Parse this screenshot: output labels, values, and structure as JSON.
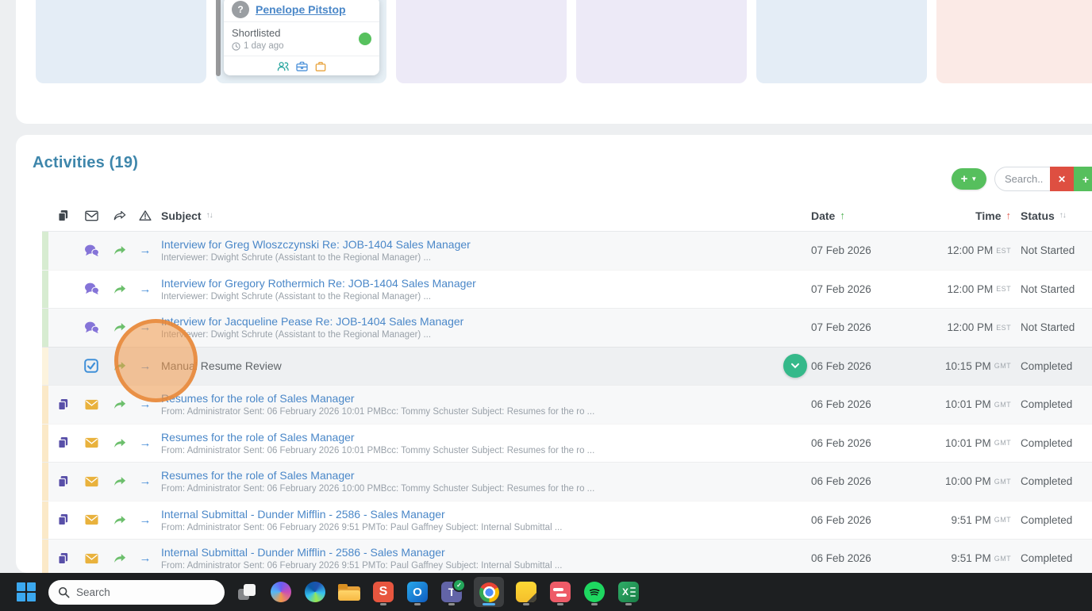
{
  "pipeline": {
    "lanes": [
      {
        "name": "lane-1",
        "color": "#e4edf6"
      },
      {
        "name": "lane-2",
        "color": "#e6eff5"
      },
      {
        "name": "lane-3",
        "color": "#edeaf7"
      },
      {
        "name": "lane-4",
        "color": "#edeaf7"
      },
      {
        "name": "lane-5",
        "color": "#e4edf6"
      },
      {
        "name": "lane-6",
        "color": "#fbeae6"
      }
    ],
    "card": {
      "name": "Penelope Pitstop",
      "avatar_glyph": "?",
      "stage": "Shortlisted",
      "time_ago": "1 day ago",
      "presence_color": "#57c15e",
      "footer_icons": [
        "candidates-icon",
        "briefcase-icon",
        "job-bag-icon"
      ]
    }
  },
  "activities": {
    "title": "Activities (19)",
    "add_button_label": "+",
    "add_button_caret": "▼",
    "search_placeholder": "Search...",
    "clear_button_label": "✕",
    "go_button_label": "+",
    "table": {
      "headers": {
        "subject": "Subject",
        "date": "Date",
        "time": "Time",
        "status": "Status"
      },
      "sort_pair": "↑↓",
      "sort_up": "↑",
      "sort": {
        "date": "ascending-green",
        "time": "ascending-red"
      },
      "rows": [
        {
          "kind": "interview",
          "subject": "Interview for Greg Wloszczynski Re: JOB-1404 Sales Manager",
          "detail": "Interviewer: Dwight Schrute (Assistant to the Regional Manager) ...",
          "date": "07 Feb 2026",
          "time": "12:00 PM",
          "tz": "EST",
          "status": "Not Started",
          "stripe": "green",
          "zebra": "shaded",
          "expand": false
        },
        {
          "kind": "interview",
          "subject": "Interview for Gregory Rothermich Re: JOB-1404 Sales Manager",
          "detail": "Interviewer: Dwight Schrute (Assistant to the Regional Manager) ...",
          "date": "07 Feb 2026",
          "time": "12:00 PM",
          "tz": "EST",
          "status": "Not Started",
          "stripe": "green",
          "zebra": "white",
          "expand": false
        },
        {
          "kind": "interview",
          "subject": "Interview for Jacqueline Pease Re: JOB-1404 Sales Manager",
          "detail": "Interviewer: Dwight Schrute (Assistant to the Regional Manager) ...",
          "date": "07 Feb 2026",
          "time": "12:00 PM",
          "tz": "EST",
          "status": "Not Started",
          "stripe": "green",
          "zebra": "shaded",
          "expand": false
        },
        {
          "kind": "task",
          "subject": "Manual Resume Review",
          "detail": "",
          "date": "06 Feb 2026",
          "time": "10:15 PM",
          "tz": "GMT",
          "status": "Completed",
          "stripe": "cream",
          "zebra": "selected",
          "expand": true
        },
        {
          "kind": "email",
          "subject": "Resumes for the role of Sales Manager",
          "detail": "From: Administrator Sent: 06 February 2026 10:01 PMBcc: Tommy Schuster Subject: Resumes for the ro ...",
          "date": "06 Feb 2026",
          "time": "10:01 PM",
          "tz": "GMT",
          "status": "Completed",
          "stripe": "amber",
          "zebra": "shaded",
          "expand": false
        },
        {
          "kind": "email",
          "subject": "Resumes for the role of Sales Manager",
          "detail": "From: Administrator Sent: 06 February 2026 10:01 PMBcc: Tommy Schuster Subject: Resumes for the ro ...",
          "date": "06 Feb 2026",
          "time": "10:01 PM",
          "tz": "GMT",
          "status": "Completed",
          "stripe": "amber",
          "zebra": "white",
          "expand": false
        },
        {
          "kind": "email",
          "subject": "Resumes for the role of Sales Manager",
          "detail": "From: Administrator Sent: 06 February 2026 10:00 PMBcc: Tommy Schuster Subject: Resumes for the ro ...",
          "date": "06 Feb 2026",
          "time": "10:00 PM",
          "tz": "GMT",
          "status": "Completed",
          "stripe": "amber",
          "zebra": "shaded",
          "expand": false
        },
        {
          "kind": "email",
          "subject": "Internal Submittal - Dunder Mifflin - 2586 - Sales Manager",
          "detail": "From: Administrator Sent: 06 February 2026 9:51 PMTo: Paul Gaffney Subject: Internal Submittal ...",
          "date": "06 Feb 2026",
          "time": "9:51 PM",
          "tz": "GMT",
          "status": "Completed",
          "stripe": "amber",
          "zebra": "white",
          "expand": false
        },
        {
          "kind": "email",
          "subject": "Internal Submittal - Dunder Mifflin - 2586 - Sales Manager",
          "detail": "From: Administrator Sent: 06 February 2026 9:51 PMTo: Paul Gaffney Subject: Internal Submittal ...",
          "date": "06 Feb 2026",
          "time": "9:51 PM",
          "tz": "GMT",
          "status": "Completed",
          "stripe": "amber",
          "zebra": "shaded",
          "expand": false
        }
      ]
    }
  },
  "taskbar": {
    "search_placeholder": "Search",
    "apps": [
      "start",
      "search",
      "task-view",
      "copilot",
      "edge",
      "file-explorer",
      "sublime-text",
      "outlook",
      "teams",
      "chrome",
      "sticky-notes",
      "pink-stripes-app",
      "spotify",
      "excel"
    ],
    "active_app": "chrome",
    "app_glyphs": {
      "sublime": "S",
      "outlook": "O",
      "teams": "T",
      "teams_badge": "✓",
      "excel": "X"
    }
  }
}
